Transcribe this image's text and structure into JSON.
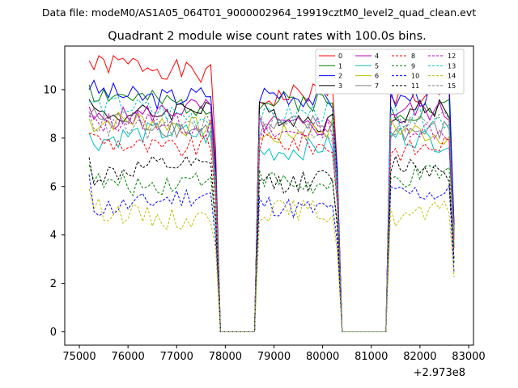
{
  "figure": {
    "suptitle": "Data file: modeM0/AS1A05_064T01_9000002964_19919cztM0_level2_quad_clean.evt",
    "offset_label": "+2.973e8"
  },
  "chart_data": {
    "type": "line",
    "title": "Quadrant 2 module wise count rates with 100.0s bins.",
    "xlabel": "",
    "ylabel": "",
    "x_offset": 297300000,
    "xlim": [
      74700,
      83100
    ],
    "ylim": [
      -0.55,
      11.8
    ],
    "xticks": [
      75000,
      76000,
      77000,
      78000,
      79000,
      80000,
      81000,
      82000,
      83000
    ],
    "xtick_labels": [
      "75000",
      "76000",
      "77000",
      "78000",
      "79000",
      "80000",
      "81000",
      "82000",
      "83000"
    ],
    "yticks": [
      0,
      2,
      4,
      6,
      8,
      10
    ],
    "ytick_labels": [
      "0",
      "2",
      "4",
      "6",
      "8",
      "10"
    ],
    "grid": false,
    "legend_position": "top-right",
    "legend_columns": 4,
    "segments": [
      {
        "start": 75200,
        "end": 77800
      },
      {
        "start": 78700,
        "end": 80300
      },
      {
        "start": 81400,
        "end": 82700
      }
    ],
    "gaps": [
      {
        "start": 77900,
        "end": 78600
      },
      {
        "start": 80400,
        "end": 81300
      }
    ],
    "series": [
      {
        "name": "0",
        "color": "#ff0000",
        "dash": "solid",
        "levels": [
          10.8,
          9.7,
          9.9
        ],
        "first": 11.2
      },
      {
        "name": "1",
        "color": "#008000",
        "dash": "solid",
        "levels": [
          9.6,
          9.3,
          9.4
        ],
        "first": 10.2
      },
      {
        "name": "2",
        "color": "#0000ff",
        "dash": "solid",
        "levels": [
          9.9,
          9.6,
          9.8
        ],
        "first": 10.0
      },
      {
        "name": "3",
        "color": "#000000",
        "dash": "solid",
        "levels": [
          9.2,
          8.9,
          9.0
        ],
        "first": 9.6
      },
      {
        "name": "4",
        "color": "#bf00bf",
        "dash": "solid",
        "levels": [
          9.0,
          8.7,
          8.9
        ],
        "first": 9.3
      },
      {
        "name": "5",
        "color": "#00bfbf",
        "dash": "solid",
        "levels": [
          8.0,
          7.7,
          7.9
        ],
        "first": 8.2
      },
      {
        "name": "6",
        "color": "#bfbf00",
        "dash": "solid",
        "levels": [
          8.5,
          8.2,
          8.4
        ],
        "first": 8.8
      },
      {
        "name": "7",
        "color": "#808080",
        "dash": "solid",
        "levels": [
          8.6,
          8.3,
          8.5
        ],
        "first": 8.9
      },
      {
        "name": "8",
        "color": "#ff0000",
        "dash": "dashed",
        "levels": [
          7.8,
          7.6,
          7.7
        ],
        "first": 8.2
      },
      {
        "name": "9",
        "color": "#008000",
        "dash": "dashed",
        "levels": [
          6.3,
          6.1,
          6.3
        ],
        "first": 6.9
      },
      {
        "name": "10",
        "color": "#0000ff",
        "dash": "dashed",
        "levels": [
          5.4,
          5.3,
          5.5
        ],
        "first": 6.5
      },
      {
        "name": "11",
        "color": "#000000",
        "dash": "dashed",
        "levels": [
          6.6,
          6.4,
          6.7
        ],
        "first": 7.2
      },
      {
        "name": "12",
        "color": "#bf00bf",
        "dash": "dashed",
        "levels": [
          8.5,
          8.3,
          8.5
        ],
        "first": 8.9
      },
      {
        "name": "13",
        "color": "#00bfbf",
        "dash": "dashed",
        "levels": [
          9.1,
          8.8,
          9.0
        ],
        "first": 9.5
      },
      {
        "name": "14",
        "color": "#bfbf00",
        "dash": "dashed",
        "levels": [
          4.9,
          4.8,
          5.0
        ],
        "first": 5.9
      },
      {
        "name": "15",
        "color": "#808080",
        "dash": "dashed",
        "levels": [
          8.6,
          8.4,
          8.6
        ],
        "first": 9.1
      }
    ]
  }
}
